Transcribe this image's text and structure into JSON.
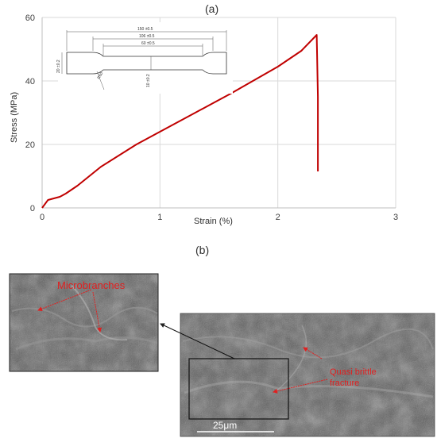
{
  "panel_a_label": "(a)",
  "panel_b_label": "(b)",
  "chart_data": {
    "type": "line",
    "title": "",
    "xlabel": "Strain (%)",
    "ylabel": "Stress (MPa)",
    "xlim": [
      0,
      3
    ],
    "ylim": [
      0,
      60
    ],
    "x_ticks": [
      "0",
      "1",
      "2",
      "3"
    ],
    "y_ticks": [
      "0",
      "20",
      "40",
      "60"
    ],
    "grid": true,
    "series": [
      {
        "color": "#c00000",
        "x": [
          0,
          0.05,
          0.1,
          0.15,
          0.2,
          0.3,
          0.5,
          0.8,
          1.0,
          1.3,
          1.6,
          2.0,
          2.2,
          2.33,
          2.34,
          2.34
        ],
        "values": [
          0,
          2.5,
          3.0,
          3.5,
          4.5,
          7.0,
          13.0,
          20.0,
          24.0,
          30.0,
          36.0,
          44.5,
          49.5,
          54.5,
          35.0,
          11.5
        ]
      }
    ]
  },
  "specimen_dims": {
    "total_length": "150 ±0.5",
    "middle_length": "106 ±0.5",
    "gauge_length": "60 ±0.5",
    "width": "20 ±0.2",
    "radius": "R60",
    "gauge_width": "10 ±0.2"
  },
  "micrographs": {
    "inset_label": "Microbranches",
    "main_label_line1": "Quasi brittle",
    "main_label_line2": "fracture",
    "scale_bar": "25μm"
  },
  "colors": {
    "curve": "#c00000",
    "annotation": "#e02020",
    "sem_background": "#5a5a5a"
  }
}
